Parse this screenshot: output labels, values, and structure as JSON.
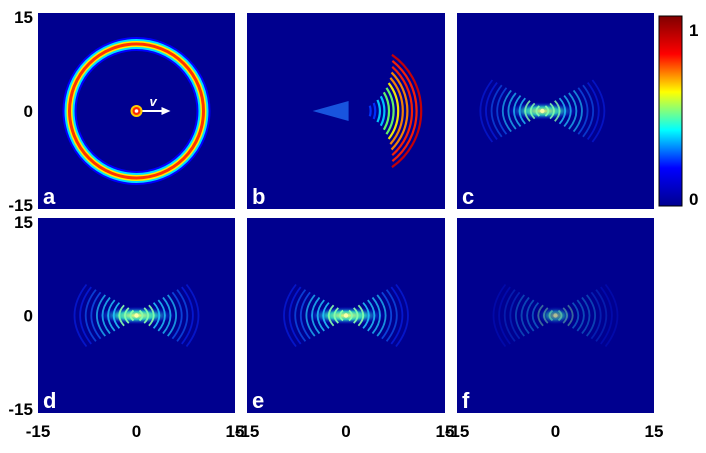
{
  "chart_data": {
    "type": "heatmap",
    "colormap": "jet",
    "panels": [
      {
        "label": "a",
        "pattern": "ring-with-source"
      },
      {
        "label": "b",
        "pattern": "forward-arcs"
      },
      {
        "label": "c",
        "pattern": "hourglass-fringes"
      },
      {
        "label": "d",
        "pattern": "hourglass-fringes"
      },
      {
        "label": "e",
        "pattern": "hourglass-fringes"
      },
      {
        "label": "f",
        "pattern": "faint-fringes"
      }
    ],
    "x_ticks": [
      "-15",
      "0",
      "15"
    ],
    "y_ticks": [
      "15",
      "0",
      "-15"
    ],
    "xlim": [
      -15,
      15
    ],
    "ylim": [
      -15,
      15
    ],
    "velocity_label": "v",
    "colorbar": {
      "min": 0,
      "max": 1,
      "tick_labels": [
        "1",
        "0"
      ]
    }
  }
}
